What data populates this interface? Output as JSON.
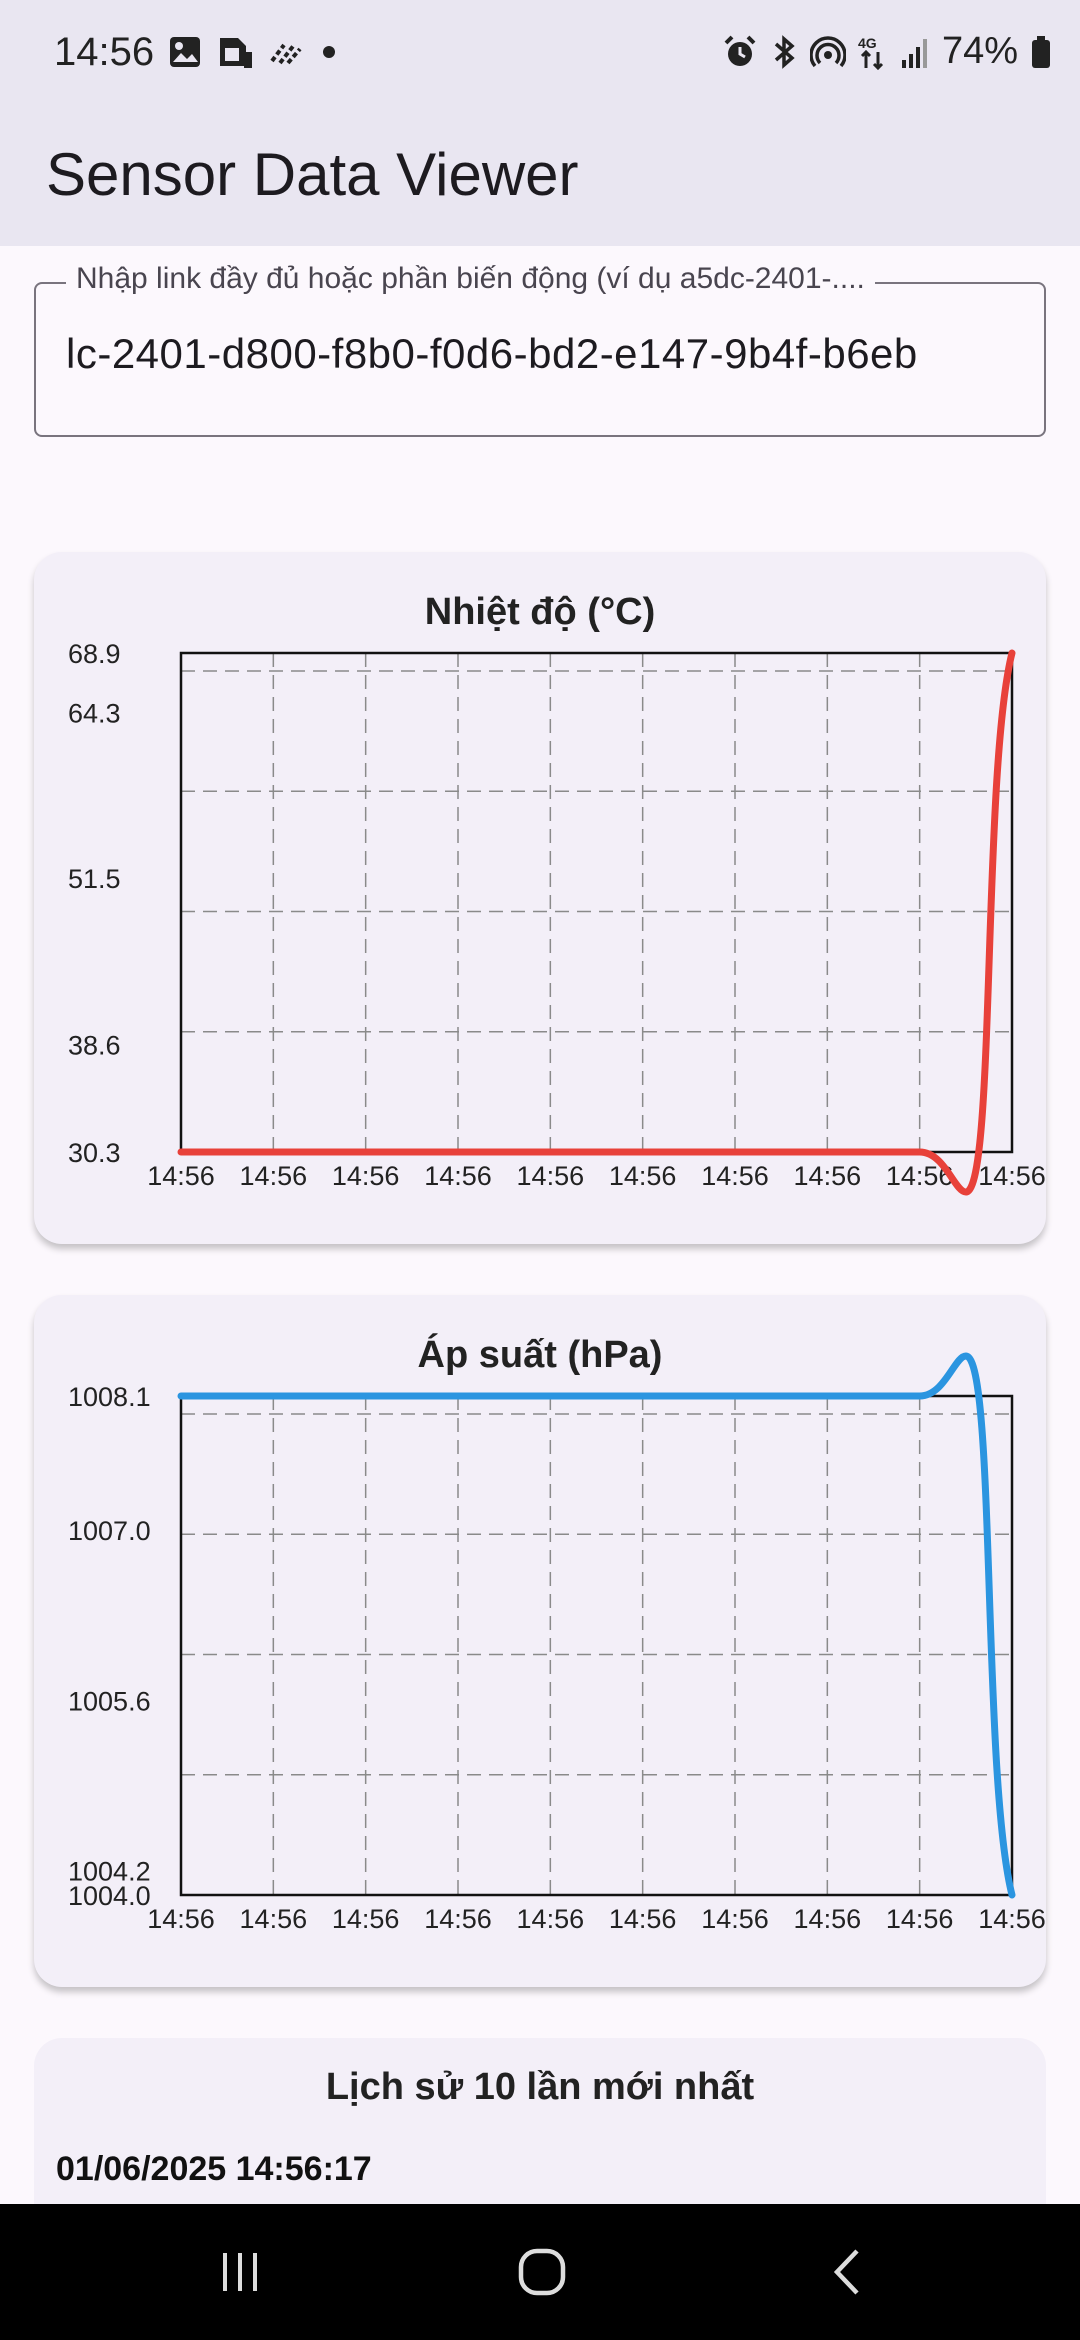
{
  "status_bar": {
    "time": "14:56",
    "battery": "74%",
    "left_icons": [
      "image-icon",
      "sim-card-icon",
      "data-saver-icon",
      "dot-icon"
    ],
    "right_icons": [
      "alarm-icon",
      "bluetooth-icon",
      "hotspot-icon",
      "network-4g-icon",
      "signal-icon",
      "battery-icon"
    ]
  },
  "app_bar": {
    "title": "Sensor Data Viewer"
  },
  "link_input": {
    "label": "Nhập link đầy đủ hoặc phần biến động (ví dụ a5dc-2401-....",
    "value": "lc-2401-d800-f8b0-f0d6-bd2-e147-9b4f-b6eb"
  },
  "temperature_card": {
    "title": "Nhiệt độ (°C)"
  },
  "pressure_card": {
    "title": "Áp suất (hPa)"
  },
  "history_card": {
    "title": "Lịch sử 10 lần mới nhất",
    "first_entry": "01/06/2025 14:56:17"
  },
  "colors": {
    "temperature_line": "#e8413a",
    "pressure_line": "#2b95e0",
    "app_bar": "#e9e6f1",
    "card": "#f3eff8"
  },
  "chart_data": [
    {
      "type": "line",
      "title": "Nhiệt độ (°C)",
      "x": [
        "14:56",
        "14:56",
        "14:56",
        "14:56",
        "14:56",
        "14:56",
        "14:56",
        "14:56",
        "14:56",
        "14:56"
      ],
      "series": [
        {
          "values": [
            30.3,
            30.3,
            30.3,
            30.3,
            30.3,
            30.3,
            30.3,
            30.3,
            30.3,
            68.9
          ]
        }
      ],
      "ytick_labels": [
        "68.9",
        "64.3",
        "51.5",
        "38.6",
        "30.3"
      ],
      "ylim": [
        30.3,
        68.9
      ],
      "grid": true,
      "grid_style": "dashed"
    },
    {
      "type": "line",
      "title": "Áp suất (hPa)",
      "x": [
        "14:56",
        "14:56",
        "14:56",
        "14:56",
        "14:56",
        "14:56",
        "14:56",
        "14:56",
        "14:56",
        "14:56"
      ],
      "series": [
        {
          "values": [
            1008.1,
            1008.1,
            1008.1,
            1008.1,
            1008.1,
            1008.1,
            1008.1,
            1008.1,
            1008.1,
            1004.0
          ]
        }
      ],
      "ytick_labels": [
        "1008.1",
        "1007.0",
        "1005.6",
        "1004.2",
        "1004.0"
      ],
      "ylim": [
        1004.0,
        1008.1
      ],
      "grid": true,
      "grid_style": "dashed"
    }
  ],
  "nav_bar": {
    "buttons": [
      "recent-apps-icon",
      "home-icon",
      "back-icon"
    ]
  }
}
